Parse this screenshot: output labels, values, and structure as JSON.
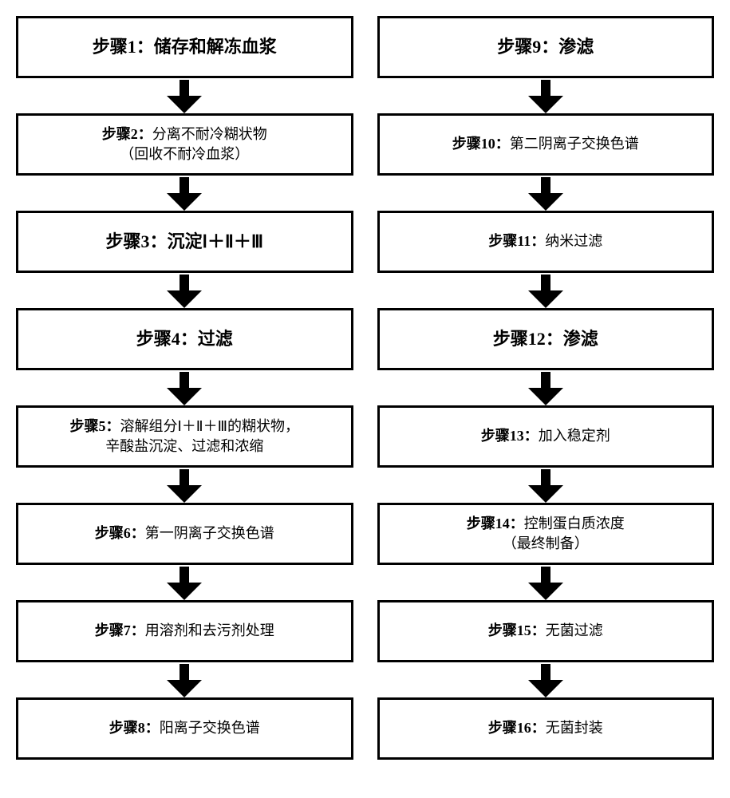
{
  "flowchart": {
    "type": "flowchart",
    "columns": 2,
    "box_border_color": "#000000",
    "box_border_width": 3,
    "box_background": "#ffffff",
    "arrow_color": "#000000",
    "emph_fontsize": 22,
    "normal_fontsize": 18,
    "left": [
      {
        "emph": true,
        "label": "步骤1：",
        "text": "储存和解冻血浆"
      },
      {
        "emph": false,
        "label": "步骤2：",
        "text": "分离不耐冷糊状物",
        "text2": "（回收不耐冷血浆）"
      },
      {
        "emph": true,
        "label": "步骤3：",
        "text": "沉淀Ⅰ＋Ⅱ＋Ⅲ"
      },
      {
        "emph": true,
        "label": "步骤4：",
        "text": "过滤"
      },
      {
        "emph": false,
        "label": "步骤5：",
        "text": "溶解组分Ⅰ＋Ⅱ＋Ⅲ的糊状物，",
        "text2": "辛酸盐沉淀、过滤和浓缩"
      },
      {
        "emph": false,
        "label": "步骤6：",
        "text": "第一阴离子交换色谱"
      },
      {
        "emph": false,
        "label": "步骤7：",
        "text": "用溶剂和去污剂处理"
      },
      {
        "emph": false,
        "label": "步骤8：",
        "text": "阳离子交换色谱"
      }
    ],
    "right": [
      {
        "emph": true,
        "label": "步骤9：",
        "text": "渗滤"
      },
      {
        "emph": false,
        "label": "步骤10：",
        "text": "第二阴离子交换色谱"
      },
      {
        "emph": false,
        "label": "步骤11：",
        "text": "纳米过滤"
      },
      {
        "emph": true,
        "label": "步骤12：",
        "text": "渗滤"
      },
      {
        "emph": false,
        "label": "步骤13：",
        "text": "加入稳定剂"
      },
      {
        "emph": false,
        "label": "步骤14：",
        "text": "控制蛋白质浓度",
        "text2": "（最终制备）"
      },
      {
        "emph": false,
        "label": "步骤15：",
        "text": "无菌过滤"
      },
      {
        "emph": false,
        "label": "步骤16：",
        "text": "无菌封装"
      }
    ]
  }
}
